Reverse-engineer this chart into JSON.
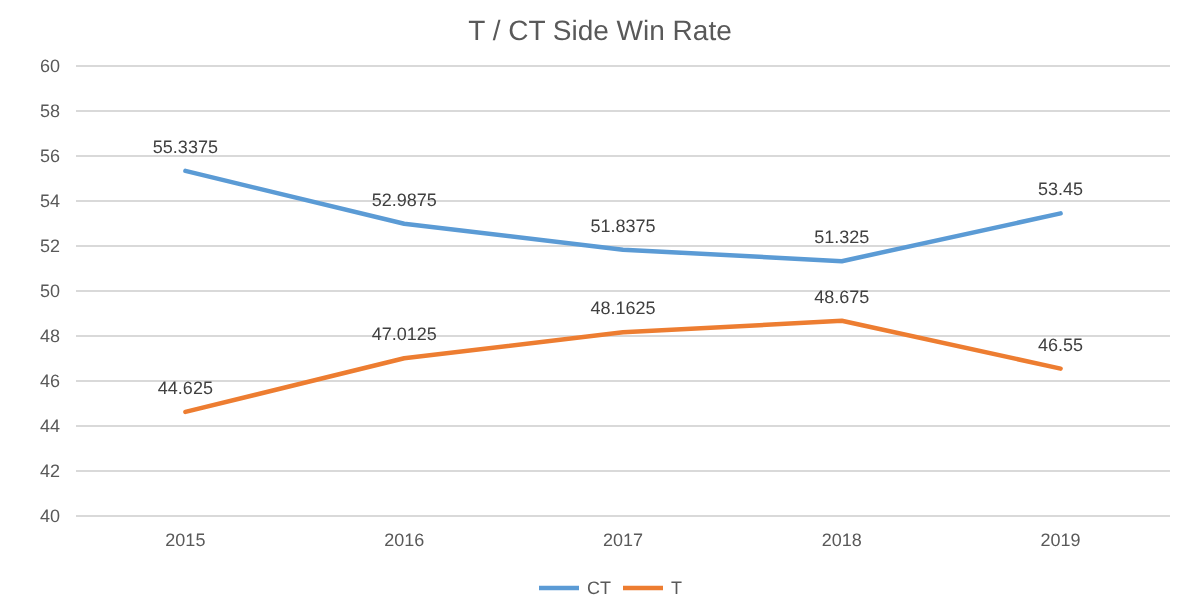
{
  "chart_data": {
    "type": "line",
    "title": "T / CT Side Win Rate",
    "categories": [
      "2015",
      "2016",
      "2017",
      "2018",
      "2019"
    ],
    "series": [
      {
        "name": "CT",
        "color": "#5b9bd5",
        "values": [
          55.3375,
          52.9875,
          51.8375,
          51.325,
          53.45
        ]
      },
      {
        "name": "T",
        "color": "#ed7d31",
        "values": [
          44.625,
          47.0125,
          48.1625,
          48.675,
          46.55
        ]
      }
    ],
    "ylim": [
      40,
      60
    ],
    "yticks": [
      40,
      42,
      44,
      46,
      48,
      50,
      52,
      54,
      56,
      58,
      60
    ],
    "grid": "y",
    "legend": "bottom",
    "data_labels": true,
    "marker": "none",
    "line_style": "solid"
  }
}
